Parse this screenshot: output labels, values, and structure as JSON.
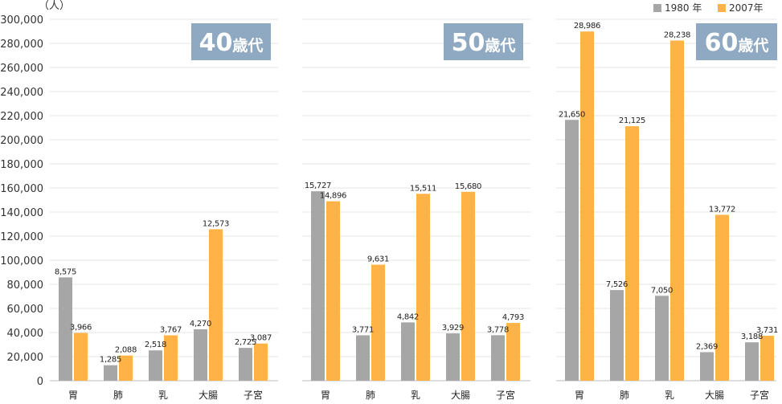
{
  "chart_data": {
    "type": "bar",
    "unit_label": "（人）",
    "y_ticks": [
      "0",
      "20,000",
      "40,000",
      "60,000",
      "80,000",
      "100,000",
      "120,000",
      "140,000",
      "160,000",
      "180,000",
      "200,000",
      "220,000",
      "240,000",
      "260,000",
      "280,000",
      "300,000"
    ],
    "ylim": [
      0,
      300000
    ],
    "grid": true,
    "legend_position": "top-right",
    "colors": {
      "s1980": "#a6a6a6",
      "s2007": "#ffb347",
      "badge": "#8ea9c1",
      "grid": "#e4e4e4"
    },
    "legend": [
      {
        "name": "1980 年",
        "color": "#a6a6a6"
      },
      {
        "name": "2007年",
        "color": "#ffb347"
      }
    ],
    "panels": [
      {
        "badge_num": "40",
        "badge_suffix": "歳代",
        "categories": [
          "胃",
          "肺",
          "乳",
          "大腸",
          "子宮"
        ],
        "series": [
          {
            "name": "1980 年",
            "values": [
              85750,
              12850,
              25180,
              42700,
              27250
            ],
            "labels": [
              "8,575",
              "1,285",
              "2,518",
              "4,270",
              "2,725"
            ]
          },
          {
            "name": "2007年",
            "values": [
              39660,
              20880,
              37670,
              125730,
              30870
            ],
            "labels": [
              "3,966",
              "2,088",
              "3,767",
              "12,573",
              "3,087"
            ]
          }
        ]
      },
      {
        "badge_num": "50",
        "badge_suffix": "歳代",
        "categories": [
          "胃",
          "肺",
          "乳",
          "大腸",
          "子宮"
        ],
        "series": [
          {
            "name": "1980 年",
            "values": [
              157270,
              37710,
              48420,
              39290,
              37780
            ],
            "labels": [
              "15,727",
              "3,771",
              "4,842",
              "3,929",
              "3,778"
            ]
          },
          {
            "name": "2007年",
            "values": [
              148960,
              96310,
              155110,
              156800,
              47930
            ],
            "labels": [
              "14,896",
              "9,631",
              "15,511",
              "15,680",
              "4,793"
            ]
          }
        ]
      },
      {
        "badge_num": "60",
        "badge_suffix": "歳代",
        "categories": [
          "胃",
          "肺",
          "乳",
          "大腸",
          "子宮"
        ],
        "series": [
          {
            "name": "1980 年",
            "values": [
              216500,
              75260,
              70500,
              23690,
              31880
            ],
            "labels": [
              "21,650",
              "7,526",
              "7,050",
              "2,369",
              "3,188"
            ]
          },
          {
            "name": "2007年",
            "values": [
              289860,
              211250,
              282380,
              137720,
              37310
            ],
            "labels": [
              "28,986",
              "21,125",
              "28,238",
              "13,772",
              "3,731"
            ]
          }
        ]
      }
    ]
  }
}
